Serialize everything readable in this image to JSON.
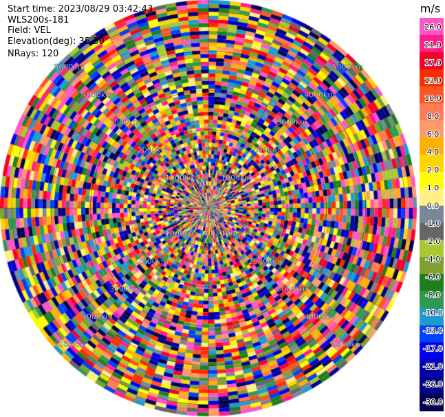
{
  "header": {
    "start_time": "Start time: 2023/08/29 03:42:43",
    "instrument": "WLS200s-181",
    "field": "Field: VEL",
    "elevation": "Elevation(deg): 35.30",
    "nrays": "NRays: 120"
  },
  "chart_data": {
    "type": "heatmap",
    "subtype": "polar-ppi",
    "field": "VEL",
    "units": "m/s",
    "n_rays": 120,
    "n_gates": 27,
    "grid": true,
    "range_ring_labels": [
      "1000km",
      "2000km",
      "3000km",
      "4000km",
      "5000km"
    ],
    "colorbar": {
      "title": "m/s",
      "placement": "right",
      "tick_labels": [
        "26.0",
        "21.0",
        "17.0",
        "13.0",
        "10.0",
        "8.0",
        "6.0",
        "4.0",
        "2.0",
        "1.0",
        "0.0",
        "-1.0",
        "-2.0",
        "-4.0",
        "-6.0",
        "-8.0",
        "-10.0",
        "-13.0",
        "-17.0",
        "-21.0",
        "-26.0",
        "-30.0"
      ],
      "colors_top_to_bottom": [
        "#ff55c8",
        "#ff1f8a",
        "#f5002a",
        "#ff2a00",
        "#ff5522",
        "#ff7a55",
        "#ff9a6a",
        "#ffb000",
        "#ffd500",
        "#ffff00",
        "#fff080",
        "#788898",
        "#666666",
        "#a8c830",
        "#80a030",
        "#1f7f1f",
        "#2f9a4f",
        "#1f9ad0",
        "#0040ff",
        "#0000ee",
        "#0000b0",
        "#000088",
        "#00004f"
      ]
    }
  }
}
